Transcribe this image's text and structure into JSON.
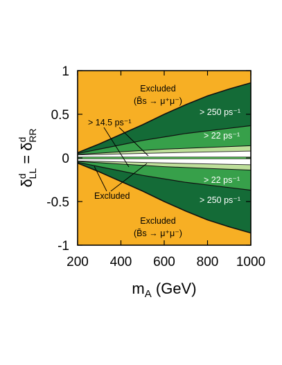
{
  "chart_data": {
    "type": "area",
    "title": "",
    "x_label": {
      "main": "m",
      "sub": "A",
      "unit": " (GeV)"
    },
    "y_label": {
      "delta": "δ",
      "sup": "d",
      "sub_l": "LL",
      "eq": " = ",
      "sub_r": "RR"
    },
    "xlim": [
      200,
      1000
    ],
    "ylim": [
      -1,
      1
    ],
    "x_ticks": [
      "200",
      "400",
      "600",
      "800",
      "1000"
    ],
    "y_ticks": [
      "1",
      "0.5",
      "0",
      "-0.5",
      "-1"
    ],
    "x_tick_values": [
      200,
      400,
      600,
      800,
      1000
    ],
    "y_tick_values": [
      1,
      0.5,
      0,
      -0.5,
      -1
    ],
    "colors": {
      "excluded_bs": "#F7AF24",
      "gt250": "#146B37",
      "gt22": "#37A04A",
      "gt14_5": "#BEDF9A",
      "central_band": "#4FAE4F",
      "allowed": "#FFFFFF"
    },
    "x": [
      200,
      300,
      400,
      500,
      600,
      700,
      800,
      900,
      1000
    ],
    "boundaries": [
      {
        "name": "Bs exclusion boundary",
        "values": [
          0.06,
          0.16,
          0.27,
          0.38,
          0.5,
          0.61,
          0.71,
          0.79,
          0.86
        ]
      },
      {
        "name": "250 ps boundary",
        "values": [
          0.05,
          0.1,
          0.15,
          0.2,
          0.24,
          0.28,
          0.31,
          0.34,
          0.37
        ]
      },
      {
        "name": "22 ps boundary",
        "values": [
          0.04,
          0.055,
          0.07,
          0.085,
          0.1,
          0.11,
          0.12,
          0.13,
          0.14
        ]
      },
      {
        "name": "14.5 ps boundary",
        "values": [
          0.035,
          0.04,
          0.046,
          0.052,
          0.058,
          0.063,
          0.068,
          0.073,
          0.078
        ]
      },
      {
        "name": "central band half-width",
        "values": [
          0.012,
          0.012,
          0.012,
          0.012,
          0.012,
          0.012,
          0.012,
          0.012,
          0.012
        ]
      }
    ],
    "labels": {
      "excluded": "Excluded",
      "bs_decay": "(B̄s → μ⁺μ⁻)",
      "gt250": "> 250 ps⁻¹",
      "gt22": "> 22 ps⁻¹",
      "gt14_5": "> 14.5 ps⁻¹"
    }
  }
}
